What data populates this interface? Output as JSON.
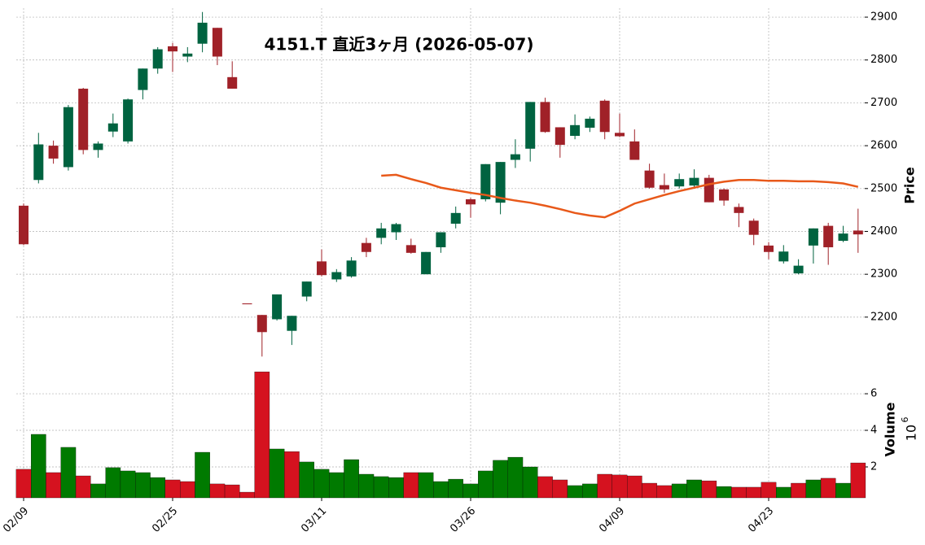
{
  "chart_data": {
    "type": "candlestick",
    "title": "4151.T 直近3ヶ月 (2026-05-07)",
    "categories": [
      "02/09",
      null,
      null,
      null,
      null,
      null,
      null,
      null,
      null,
      null,
      "02/25",
      null,
      null,
      null,
      null,
      null,
      null,
      null,
      null,
      null,
      "03/11",
      null,
      null,
      null,
      null,
      null,
      null,
      null,
      null,
      null,
      "03/26",
      null,
      null,
      null,
      null,
      null,
      null,
      null,
      null,
      null,
      "04/09",
      null,
      null,
      null,
      null,
      null,
      null,
      null,
      null,
      null,
      "04/23",
      null,
      null,
      null,
      null,
      null,
      null
    ],
    "open": [
      2460,
      2520,
      2600,
      2550,
      2733,
      2590,
      2633,
      2610,
      2730,
      2780,
      2832,
      2808,
      2838,
      2875,
      2760,
      2232,
      2205,
      2195,
      2168,
      2248,
      2330,
      2288,
      2295,
      2373,
      2385,
      2398,
      2368,
      2300,
      2363,
      2418,
      2475,
      2475,
      2467,
      2567,
      2593,
      2702,
      2643,
      2623,
      2642,
      2705,
      2630,
      2610,
      2542,
      2508,
      2505,
      2507,
      2525,
      2498,
      2457,
      2425,
      2367,
      2330,
      2302,
      2367,
      2413,
      2378,
      2402
    ],
    "high": [
      2465,
      2630,
      2612,
      2695,
      2735,
      2610,
      2675,
      2710,
      2780,
      2830,
      2840,
      2830,
      2912,
      2875,
      2797,
      2232,
      2205,
      2253,
      2203,
      2283,
      2358,
      2312,
      2340,
      2385,
      2420,
      2420,
      2383,
      2352,
      2398,
      2458,
      2478,
      2557,
      2562,
      2615,
      2702,
      2712,
      2643,
      2673,
      2668,
      2708,
      2675,
      2638,
      2558,
      2535,
      2535,
      2545,
      2532,
      2500,
      2465,
      2430,
      2375,
      2368,
      2335,
      2407,
      2420,
      2413,
      2453
    ],
    "low": [
      2368,
      2512,
      2558,
      2542,
      2580,
      2572,
      2620,
      2605,
      2708,
      2768,
      2772,
      2795,
      2818,
      2788,
      2733,
      2230,
      2108,
      2192,
      2135,
      2237,
      2295,
      2282,
      2292,
      2340,
      2370,
      2380,
      2348,
      2300,
      2350,
      2407,
      2432,
      2470,
      2440,
      2548,
      2563,
      2630,
      2572,
      2615,
      2632,
      2615,
      2620,
      2567,
      2500,
      2490,
      2500,
      2500,
      2468,
      2460,
      2410,
      2368,
      2335,
      2325,
      2300,
      2325,
      2322,
      2375,
      2350
    ],
    "close": [
      2370,
      2603,
      2570,
      2690,
      2590,
      2605,
      2652,
      2708,
      2780,
      2825,
      2820,
      2815,
      2887,
      2808,
      2733,
      2230,
      2165,
      2253,
      2203,
      2283,
      2298,
      2305,
      2332,
      2352,
      2407,
      2417,
      2350,
      2352,
      2398,
      2443,
      2463,
      2557,
      2562,
      2580,
      2702,
      2632,
      2602,
      2648,
      2663,
      2632,
      2622,
      2567,
      2502,
      2498,
      2522,
      2525,
      2468,
      2472,
      2443,
      2392,
      2352,
      2353,
      2320,
      2407,
      2363,
      2395,
      2393
    ],
    "up_color": "#006340",
    "down_color": "#a02128",
    "ma": {
      "color": "#e8591a",
      "values": [
        null,
        null,
        null,
        null,
        null,
        null,
        null,
        null,
        null,
        null,
        null,
        null,
        null,
        null,
        null,
        null,
        null,
        null,
        null,
        null,
        null,
        null,
        null,
        null,
        2530,
        2532,
        2522,
        2513,
        2502,
        2496,
        2490,
        2485,
        2478,
        2472,
        2467,
        2460,
        2452,
        2443,
        2437,
        2433,
        2448,
        2465,
        2475,
        2485,
        2494,
        2502,
        2510,
        2516,
        2520,
        2520,
        2518,
        2518,
        2517,
        2517,
        2515,
        2512,
        2504
      ]
    },
    "ylabel": "Price",
    "ylim": [
      2101,
      2921
    ],
    "yticks": [
      2200,
      2300,
      2400,
      2500,
      2600,
      2700,
      2800,
      2900
    ],
    "grid": true,
    "volume": {
      "ylabel": "Volume",
      "scale_base": "10",
      "scale_exponent": "6",
      "ylim": [
        0.31,
        7.87
      ],
      "yticks": [
        2,
        4,
        6
      ],
      "values": [
        1.87,
        3.78,
        1.69,
        3.07,
        1.51,
        1.07,
        1.96,
        1.78,
        1.69,
        1.42,
        1.29,
        1.2,
        2.8,
        1.07,
        1.02,
        0.62,
        7.2,
        2.98,
        2.84,
        2.27,
        1.87,
        1.69,
        2.4,
        1.6,
        1.47,
        1.42,
        1.69,
        1.69,
        1.2,
        1.33,
        1.07,
        1.78,
        2.36,
        2.53,
        2.0,
        1.47,
        1.29,
        0.98,
        1.07,
        1.6,
        1.56,
        1.51,
        1.11,
        0.98,
        1.07,
        1.29,
        1.24,
        0.93,
        0.89,
        0.89,
        1.16,
        0.89,
        1.11,
        1.29,
        1.38,
        1.11,
        2.22
      ],
      "colors": [
        "#d5121f",
        "#007a00",
        "#d5121f",
        "#007a00",
        "#d5121f",
        "#007a00",
        "#007a00",
        "#007a00",
        "#007a00",
        "#007a00",
        "#d5121f",
        "#d5121f",
        "#007a00",
        "#d5121f",
        "#d5121f",
        "#d5121f",
        "#d5121f",
        "#007a00",
        "#d5121f",
        "#007a00",
        "#007a00",
        "#007a00",
        "#007a00",
        "#007a00",
        "#007a00",
        "#007a00",
        "#d5121f",
        "#007a00",
        "#007a00",
        "#007a00",
        "#007a00",
        "#007a00",
        "#007a00",
        "#007a00",
        "#007a00",
        "#d5121f",
        "#d5121f",
        "#007a00",
        "#007a00",
        "#d5121f",
        "#d5121f",
        "#d5121f",
        "#d5121f",
        "#d5121f",
        "#007a00",
        "#007a00",
        "#d5121f",
        "#007a00",
        "#d5121f",
        "#d5121f",
        "#d5121f",
        "#007a00",
        "#d5121f",
        "#007a00",
        "#d5121f",
        "#007a00",
        "#d5121f"
      ]
    }
  }
}
